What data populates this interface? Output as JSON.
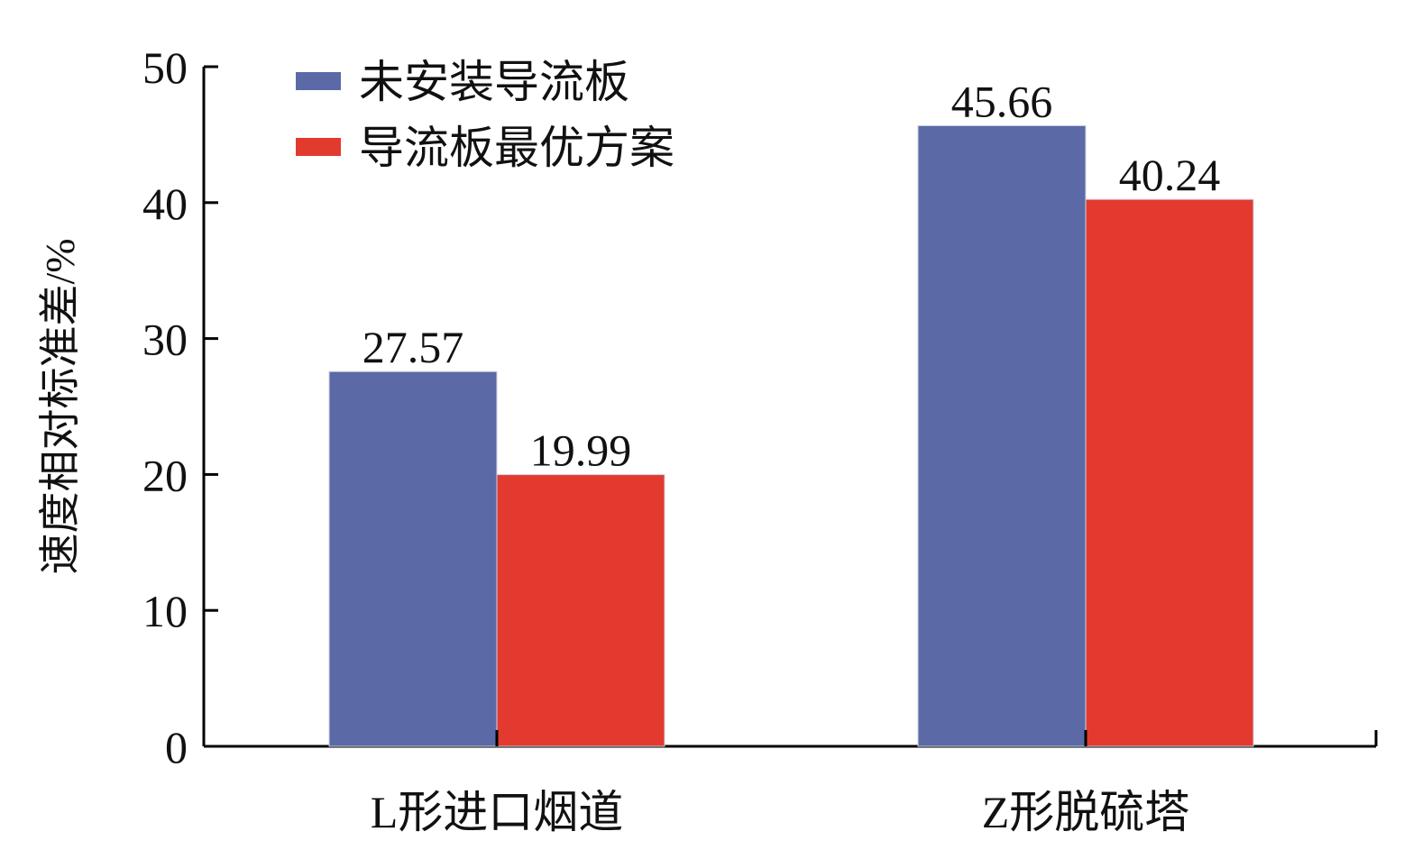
{
  "chart_data": {
    "type": "bar",
    "categories": [
      "L形进口烟道",
      "Z形脱硫塔"
    ],
    "series": [
      {
        "name": "未安装导流板",
        "color": "#5b6aa6",
        "values": [
          27.57,
          45.66
        ]
      },
      {
        "name": "导流板最优方案",
        "color": "#e33a2f",
        "values": [
          19.99,
          40.24
        ]
      }
    ],
    "data_labels": [
      [
        "27.57",
        "45.66"
      ],
      [
        "19.99",
        "40.24"
      ]
    ],
    "ylabel": "速度相对标准差/%",
    "xlabel": "",
    "ylim": [
      0,
      50
    ],
    "yticks": [
      0,
      10,
      20,
      30,
      40,
      50
    ],
    "ytick_labels": [
      "0",
      "10",
      "20",
      "30",
      "40",
      "50"
    ],
    "grid": false,
    "legend_position": "top-left"
  }
}
